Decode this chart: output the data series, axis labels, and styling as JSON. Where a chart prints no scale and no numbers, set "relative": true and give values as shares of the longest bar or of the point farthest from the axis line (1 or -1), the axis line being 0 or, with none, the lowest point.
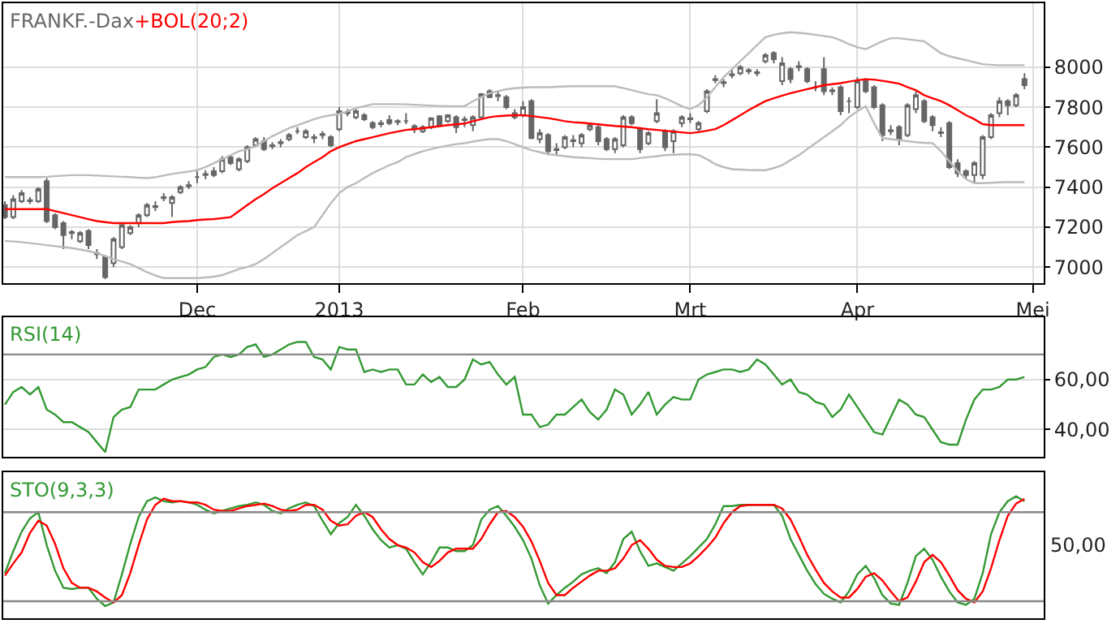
{
  "chart_data": [
    {
      "type": "candlestick",
      "title": "FRANKF.-Dax",
      "color": "#666666",
      "categories": [
        null,
        null,
        null,
        null,
        null,
        null,
        null,
        null,
        null,
        null,
        null,
        null,
        null,
        null,
        null,
        null,
        null,
        null,
        null,
        null,
        null,
        null,
        null,
        "Dec",
        null,
        null,
        null,
        null,
        null,
        null,
        null,
        null,
        null,
        null,
        null,
        null,
        null,
        null,
        null,
        null,
        "2013",
        null,
        null,
        null,
        null,
        null,
        null,
        null,
        null,
        null,
        null,
        null,
        null,
        null,
        null,
        null,
        null,
        null,
        null,
        null,
        null,
        null,
        "Feb",
        null,
        null,
        null,
        null,
        null,
        null,
        null,
        null,
        null,
        null,
        null,
        null,
        null,
        null,
        null,
        null,
        null,
        null,
        null,
        "Mrt",
        null,
        null,
        null,
        null,
        null,
        null,
        null,
        null,
        null,
        null,
        null,
        null,
        null,
        null,
        null,
        null,
        null,
        null,
        null,
        "Apr",
        null,
        null,
        null,
        null,
        null,
        null,
        null,
        null,
        null,
        null,
        null,
        null,
        null,
        null,
        null,
        null,
        null,
        null,
        null,
        null,
        "Mei"
      ],
      "ohlc": [
        [
          7310,
          7330,
          7240,
          7250
        ],
        [
          7250,
          7360,
          7240,
          7340
        ],
        [
          7330,
          7385,
          7320,
          7370
        ],
        [
          7335,
          7350,
          7315,
          7330
        ],
        [
          7330,
          7400,
          7320,
          7390
        ],
        [
          7430,
          7445,
          7220,
          7230
        ],
        [
          7260,
          7270,
          7190,
          7200
        ],
        [
          7220,
          7230,
          7090,
          7160
        ],
        [
          7170,
          7185,
          7140,
          7175
        ],
        [
          7130,
          7180,
          7120,
          7170
        ],
        [
          7180,
          7190,
          7090,
          7110
        ],
        [
          7070,
          7090,
          7040,
          7065
        ],
        [
          7050,
          7060,
          6940,
          6950
        ],
        [
          7020,
          7150,
          7000,
          7140
        ],
        [
          7100,
          7220,
          7090,
          7210
        ],
        [
          7170,
          7210,
          7160,
          7200
        ],
        [
          7220,
          7270,
          7200,
          7260
        ],
        [
          7260,
          7320,
          7250,
          7310
        ],
        [
          7300,
          7330,
          7280,
          7305
        ],
        [
          7345,
          7370,
          7330,
          7350
        ],
        [
          7320,
          7360,
          7250,
          7350
        ],
        [
          7375,
          7410,
          7365,
          7400
        ],
        [
          7405,
          7430,
          7390,
          7410
        ],
        [
          7450,
          7480,
          7420,
          7450
        ],
        [
          7460,
          7485,
          7440,
          7465
        ],
        [
          7480,
          7500,
          7450,
          7460
        ],
        [
          7480,
          7555,
          7470,
          7540
        ],
        [
          7550,
          7560,
          7510,
          7520
        ],
        [
          7490,
          7550,
          7480,
          7540
        ],
        [
          7530,
          7610,
          7520,
          7600
        ],
        [
          7610,
          7650,
          7600,
          7640
        ],
        [
          7630,
          7650,
          7580,
          7590
        ],
        [
          7605,
          7625,
          7590,
          7610
        ],
        [
          7620,
          7640,
          7600,
          7625
        ],
        [
          7640,
          7670,
          7630,
          7660
        ],
        [
          7680,
          7700,
          7665,
          7680
        ],
        [
          7650,
          7690,
          7640,
          7680
        ],
        [
          7645,
          7665,
          7620,
          7650
        ],
        [
          7660,
          7680,
          7640,
          7665
        ],
        [
          7650,
          7660,
          7600,
          7610
        ],
        [
          7690,
          7800,
          7680,
          7780
        ],
        [
          7770,
          7790,
          7755,
          7775
        ],
        [
          7750,
          7790,
          7740,
          7780
        ],
        [
          7760,
          7770,
          7730,
          7740
        ],
        [
          7720,
          7730,
          7690,
          7700
        ],
        [
          7715,
          7735,
          7700,
          7720
        ],
        [
          7735,
          7760,
          7710,
          7720
        ],
        [
          7725,
          7740,
          7710,
          7730
        ],
        [
          7730,
          7770,
          7715,
          7730
        ],
        [
          7705,
          7715,
          7670,
          7690
        ],
        [
          7680,
          7710,
          7670,
          7700
        ],
        [
          7700,
          7750,
          7690,
          7745
        ],
        [
          7755,
          7760,
          7700,
          7710
        ],
        [
          7730,
          7765,
          7720,
          7760
        ],
        [
          7750,
          7760,
          7670,
          7700
        ],
        [
          7735,
          7755,
          7700,
          7740
        ],
        [
          7710,
          7760,
          7680,
          7750
        ],
        [
          7750,
          7870,
          7745,
          7865
        ],
        [
          7880,
          7890,
          7845,
          7850
        ],
        [
          7855,
          7880,
          7830,
          7860
        ],
        [
          7850,
          7860,
          7790,
          7800
        ],
        [
          7770,
          7790,
          7740,
          7750
        ],
        [
          7760,
          7830,
          7750,
          7800
        ],
        [
          7830,
          7840,
          7640,
          7645
        ],
        [
          7640,
          7690,
          7620,
          7670
        ],
        [
          7660,
          7670,
          7560,
          7580
        ],
        [
          7585,
          7620,
          7560,
          7590
        ],
        [
          7600,
          7660,
          7590,
          7650
        ],
        [
          7630,
          7660,
          7600,
          7635
        ],
        [
          7620,
          7670,
          7600,
          7660
        ],
        [
          7690,
          7720,
          7680,
          7710
        ],
        [
          7700,
          7710,
          7610,
          7630
        ],
        [
          7640,
          7650,
          7580,
          7590
        ],
        [
          7590,
          7650,
          7570,
          7640
        ],
        [
          7610,
          7760,
          7600,
          7750
        ],
        [
          7750,
          7760,
          7710,
          7720
        ],
        [
          7690,
          7700,
          7570,
          7590
        ],
        [
          7620,
          7680,
          7610,
          7670
        ],
        [
          7730,
          7840,
          7720,
          7770
        ],
        [
          7680,
          7690,
          7580,
          7600
        ],
        [
          7630,
          7690,
          7570,
          7680
        ],
        [
          7720,
          7760,
          7700,
          7750
        ],
        [
          7740,
          7770,
          7720,
          7745
        ],
        [
          7690,
          7730,
          7680,
          7720
        ],
        [
          7780,
          7890,
          7770,
          7880
        ],
        [
          7935,
          7960,
          7920,
          7940
        ],
        [
          7920,
          7940,
          7900,
          7925
        ],
        [
          7960,
          7990,
          7945,
          7965
        ],
        [
          7970,
          8010,
          7960,
          8000
        ],
        [
          7980,
          7995,
          7965,
          7985
        ],
        [
          7970,
          7990,
          7955,
          7975
        ],
        [
          8030,
          8070,
          8020,
          8060
        ],
        [
          8070,
          8080,
          8020,
          8040
        ],
        [
          7930,
          8050,
          7910,
          8020
        ],
        [
          7990,
          8000,
          7920,
          7940
        ],
        [
          8000,
          8030,
          7980,
          8005
        ],
        [
          7990,
          8000,
          7920,
          7930
        ],
        [
          7900,
          7930,
          7880,
          7900
        ],
        [
          7990,
          8050,
          7860,
          7880
        ],
        [
          7880,
          7900,
          7860,
          7885
        ],
        [
          7900,
          7910,
          7760,
          7780
        ],
        [
          7830,
          7850,
          7770,
          7830
        ],
        [
          7800,
          7950,
          7790,
          7930
        ],
        [
          7930,
          7945,
          7870,
          7880
        ],
        [
          7900,
          7910,
          7790,
          7800
        ],
        [
          7810,
          7820,
          7630,
          7660
        ],
        [
          7680,
          7710,
          7660,
          7685
        ],
        [
          7700,
          7710,
          7610,
          7640
        ],
        [
          7660,
          7820,
          7650,
          7810
        ],
        [
          7790,
          7880,
          7770,
          7860
        ],
        [
          7830,
          7840,
          7720,
          7730
        ],
        [
          7750,
          7760,
          7680,
          7710
        ],
        [
          7670,
          7700,
          7650,
          7675
        ],
        [
          7720,
          7730,
          7490,
          7500
        ],
        [
          7520,
          7540,
          7450,
          7470
        ],
        [
          7480,
          7490,
          7440,
          7460
        ],
        [
          7460,
          7530,
          7420,
          7520
        ],
        [
          7460,
          7660,
          7440,
          7650
        ],
        [
          7650,
          7770,
          7640,
          7760
        ],
        [
          7770,
          7850,
          7750,
          7830
        ],
        [
          7830,
          7840,
          7760,
          7810
        ],
        [
          7810,
          7870,
          7800,
          7860
        ],
        [
          7940,
          7970,
          7890,
          7910
        ],
        null
      ],
      "series": [
        {
          "type": "line",
          "color": "#bbbbbb",
          "values": [
            7450,
            7450,
            7450,
            7450,
            7450,
            7452,
            7455,
            7458,
            7460,
            7460,
            7460,
            7458,
            7456,
            7454,
            7452,
            7450,
            7447,
            7445,
            7450,
            7458,
            7466,
            7472,
            7478,
            7485,
            7500,
            7520,
            7540,
            7560,
            7580,
            7590,
            7605,
            7630,
            7655,
            7675,
            7695,
            7710,
            7725,
            7740,
            7752,
            7760,
            7766,
            7780,
            7795,
            7805,
            7815,
            7815,
            7815,
            7815,
            7814,
            7812,
            7810,
            7808,
            7806,
            7805,
            7805,
            7805,
            7830,
            7850,
            7870,
            7880,
            7890,
            7895,
            7898,
            7900,
            7900,
            7900,
            7902,
            7904,
            7905,
            7905,
            7905,
            7905,
            7905,
            7905,
            7895,
            7885,
            7875,
            7865,
            7860,
            7845,
            7825,
            7805,
            7790,
            7810,
            7850,
            7900,
            7950,
            7990,
            8030,
            8070,
            8110,
            8150,
            8162,
            8170,
            8175,
            8172,
            8168,
            8162,
            8156,
            8150,
            8135,
            8115,
            8100,
            8090,
            8110,
            8130,
            8145,
            8145,
            8140,
            8135,
            8130,
            8100,
            8070,
            8055,
            8045,
            8035,
            8025,
            8015,
            8012,
            8010,
            8010,
            8010,
            8010,
            null
          ]
        },
        {
          "type": "line",
          "color": "#bbbbbb",
          "values": [
            7130,
            7128,
            7125,
            7120,
            7115,
            7110,
            7105,
            7100,
            7095,
            7088,
            7080,
            7070,
            7055,
            7040,
            7028,
            7015,
            6995,
            6975,
            6958,
            6945,
            6945,
            6945,
            6945,
            6945,
            6948,
            6952,
            6960,
            6975,
            6990,
            7000,
            7015,
            7040,
            7070,
            7100,
            7130,
            7160,
            7180,
            7200,
            7260,
            7320,
            7370,
            7400,
            7420,
            7445,
            7470,
            7490,
            7510,
            7525,
            7550,
            7565,
            7580,
            7590,
            7600,
            7608,
            7615,
            7620,
            7628,
            7635,
            7640,
            7640,
            7630,
            7615,
            7600,
            7585,
            7575,
            7565,
            7560,
            7555,
            7550,
            7548,
            7545,
            7542,
            7540,
            7540,
            7540,
            7540,
            7545,
            7550,
            7555,
            7560,
            7562,
            7564,
            7565,
            7560,
            7540,
            7515,
            7500,
            7490,
            7488,
            7486,
            7485,
            7485,
            7495,
            7510,
            7535,
            7560,
            7590,
            7620,
            7650,
            7680,
            7710,
            7750,
            7780,
            7805,
            7720,
            7645,
            7640,
            7635,
            7630,
            7625,
            7622,
            7620,
            7580,
            7530,
            7480,
            7440,
            7420,
            7420,
            7422,
            7424,
            7425,
            7425,
            7425,
            null
          ]
        },
        {
          "type": "line",
          "name": "+BOL(20;2)",
          "color": "#ff0000",
          "values": [
            7290,
            7290,
            7290,
            7290,
            7290,
            7290,
            7280,
            7270,
            7260,
            7250,
            7240,
            7230,
            7225,
            7220,
            7220,
            7220,
            7220,
            7220,
            7220,
            7220,
            7225,
            7228,
            7230,
            7235,
            7238,
            7240,
            7245,
            7250,
            7280,
            7310,
            7340,
            7365,
            7395,
            7420,
            7445,
            7470,
            7500,
            7525,
            7550,
            7580,
            7600,
            7615,
            7630,
            7640,
            7650,
            7660,
            7670,
            7678,
            7686,
            7690,
            7695,
            7700,
            7705,
            7710,
            7714,
            7718,
            7730,
            7740,
            7750,
            7755,
            7758,
            7760,
            7760,
            7755,
            7750,
            7745,
            7738,
            7730,
            7725,
            7722,
            7718,
            7714,
            7710,
            7706,
            7703,
            7700,
            7695,
            7690,
            7686,
            7682,
            7678,
            7674,
            7670,
            7675,
            7682,
            7690,
            7710,
            7735,
            7760,
            7785,
            7808,
            7830,
            7845,
            7858,
            7870,
            7880,
            7890,
            7900,
            7910,
            7915,
            7920,
            7928,
            7935,
            7940,
            7938,
            7932,
            7925,
            7918,
            7900,
            7885,
            7860,
            7845,
            7830,
            7810,
            7785,
            7760,
            7740,
            7715,
            7710,
            7710,
            7710,
            7710,
            7710,
            null
          ]
        }
      ],
      "ylim": [
        6920,
        8320
      ],
      "yticks": [
        7000,
        7200,
        7400,
        7600,
        7800,
        8000
      ],
      "grid": true
    },
    {
      "type": "line",
      "title": "RSI(14)",
      "tick_labels": "y",
      "categories": [
        null,
        null,
        null,
        null,
        null,
        null,
        null,
        null,
        null,
        null,
        null,
        null,
        null,
        null,
        null,
        null,
        null,
        null,
        null,
        null,
        null,
        null,
        null,
        null,
        null,
        null,
        null,
        null,
        null,
        null,
        null,
        null,
        null,
        null,
        null,
        null,
        null,
        null,
        null,
        null,
        null,
        null,
        null,
        null,
        null,
        null,
        null,
        null,
        null,
        null,
        null,
        null,
        null,
        null,
        null,
        null,
        null,
        null,
        null,
        null,
        null,
        null,
        null,
        null,
        null,
        null,
        null,
        null,
        null,
        null,
        null,
        null,
        null,
        null,
        null,
        null,
        null,
        null,
        null,
        null,
        null,
        null,
        null,
        null,
        null,
        null,
        null,
        null,
        null,
        null,
        null,
        null,
        null,
        null,
        null,
        null,
        null,
        null,
        null,
        null,
        null,
        null,
        null,
        null,
        null,
        null,
        null,
        null,
        null,
        null,
        null,
        null,
        null,
        null,
        null,
        null,
        null,
        null,
        null,
        null,
        null,
        null,
        null,
        null
      ],
      "series": [
        {
          "color": "#339933",
          "values": [
            50,
            55,
            57,
            54,
            57,
            48,
            46,
            43,
            43,
            41,
            39,
            35,
            31,
            45,
            48,
            49,
            56,
            56,
            56,
            58,
            60,
            61,
            62,
            64,
            65,
            69,
            70,
            69,
            70,
            73,
            74,
            69,
            70,
            72,
            74,
            75,
            75,
            69,
            68,
            64,
            73,
            72,
            72,
            63,
            64,
            63,
            64,
            64,
            58,
            58,
            62,
            59,
            61,
            57,
            57,
            60,
            68,
            66,
            67,
            62,
            58,
            61,
            46,
            46,
            41,
            42,
            46,
            46,
            49,
            52,
            47,
            44,
            48,
            56,
            54,
            46,
            50,
            55,
            46,
            50,
            53,
            52,
            52,
            60,
            62,
            63,
            64,
            64,
            63,
            64,
            68,
            66,
            62,
            58,
            60,
            55,
            54,
            51,
            50,
            45,
            48,
            54,
            49,
            44,
            39,
            38,
            45,
            52,
            50,
            46,
            45,
            40,
            35,
            34,
            34,
            44,
            52,
            56,
            56,
            57,
            60,
            60,
            61,
            null
          ]
        }
      ],
      "ylim": [
        29,
        85
      ],
      "yticks": [
        {
          "value": 40,
          "label": "40,00"
        },
        {
          "value": 60,
          "label": "60,00"
        }
      ],
      "ref_lines": [
        {
          "axis": "y",
          "value": 70,
          "color": "#888888"
        }
      ],
      "grid": true
    },
    {
      "type": "line",
      "title": "STO(9,3,3)",
      "tick_labels": "y",
      "categories": [
        null,
        null,
        null,
        null,
        null,
        null,
        null,
        null,
        null,
        null,
        null,
        null,
        null,
        null,
        null,
        null,
        null,
        null,
        null,
        null,
        null,
        null,
        null,
        null,
        null,
        null,
        null,
        null,
        null,
        null,
        null,
        null,
        null,
        null,
        null,
        null,
        null,
        null,
        null,
        null,
        null,
        null,
        null,
        null,
        null,
        null,
        null,
        null,
        null,
        null,
        null,
        null,
        null,
        null,
        null,
        null,
        null,
        null,
        null,
        null,
        null,
        null,
        null,
        null,
        null,
        null,
        null,
        null,
        null,
        null,
        null,
        null,
        null,
        null,
        null,
        null,
        null,
        null,
        null,
        null,
        null,
        null,
        null,
        null,
        null,
        null,
        null,
        null,
        null,
        null,
        null,
        null,
        null,
        null,
        null,
        null,
        null,
        null,
        null,
        null,
        null,
        null,
        null,
        null,
        null,
        null,
        null,
        null,
        null,
        null,
        null,
        null,
        null,
        null,
        null,
        null,
        null,
        null,
        null,
        null,
        null,
        null,
        null,
        null
      ],
      "series": [
        {
          "color": "#339933",
          "values": [
            0.37,
            0.55,
            0.71,
            0.82,
            0.87,
            0.6,
            0.39,
            0.25,
            0.24,
            0.25,
            0.25,
            0.16,
            0.1,
            0.13,
            0.36,
            0.61,
            0.83,
            0.96,
            0.99,
            0.96,
            0.95,
            0.96,
            0.95,
            0.93,
            0.89,
            0.86,
            0.88,
            0.9,
            0.92,
            0.93,
            0.95,
            0.93,
            0.88,
            0.86,
            0.9,
            0.93,
            0.95,
            0.92,
            0.8,
            0.69,
            0.78,
            0.83,
            0.93,
            0.84,
            0.73,
            0.64,
            0.58,
            0.6,
            0.57,
            0.46,
            0.36,
            0.46,
            0.58,
            0.58,
            0.55,
            0.55,
            0.6,
            0.81,
            0.89,
            0.92,
            0.84,
            0.75,
            0.64,
            0.49,
            0.27,
            0.12,
            0.19,
            0.25,
            0.3,
            0.36,
            0.39,
            0.41,
            0.37,
            0.46,
            0.65,
            0.71,
            0.55,
            0.43,
            0.45,
            0.42,
            0.39,
            0.45,
            0.51,
            0.58,
            0.65,
            0.77,
            0.92,
            0.92,
            0.93,
            0.93,
            0.93,
            0.93,
            0.93,
            0.84,
            0.65,
            0.52,
            0.39,
            0.28,
            0.2,
            0.16,
            0.13,
            0.22,
            0.36,
            0.43,
            0.33,
            0.19,
            0.12,
            0.11,
            0.29,
            0.51,
            0.57,
            0.48,
            0.34,
            0.22,
            0.13,
            0.11,
            0.16,
            0.37,
            0.69,
            0.87,
            0.96,
            1.0,
            0.96,
            null
          ]
        },
        {
          "color": "#ff0000",
          "values": [
            0.35,
            0.45,
            0.54,
            0.7,
            0.8,
            0.76,
            0.61,
            0.41,
            0.29,
            0.25,
            0.25,
            0.22,
            0.17,
            0.13,
            0.19,
            0.37,
            0.6,
            0.81,
            0.93,
            0.98,
            0.96,
            0.96,
            0.95,
            0.95,
            0.93,
            0.89,
            0.88,
            0.88,
            0.9,
            0.92,
            0.93,
            0.94,
            0.92,
            0.89,
            0.88,
            0.89,
            0.93,
            0.93,
            0.89,
            0.8,
            0.76,
            0.77,
            0.84,
            0.87,
            0.83,
            0.73,
            0.65,
            0.6,
            0.58,
            0.54,
            0.46,
            0.42,
            0.47,
            0.54,
            0.57,
            0.57,
            0.57,
            0.65,
            0.77,
            0.87,
            0.88,
            0.83,
            0.75,
            0.63,
            0.47,
            0.29,
            0.19,
            0.19,
            0.25,
            0.3,
            0.35,
            0.39,
            0.39,
            0.41,
            0.49,
            0.6,
            0.64,
            0.57,
            0.48,
            0.43,
            0.42,
            0.42,
            0.45,
            0.51,
            0.58,
            0.66,
            0.78,
            0.87,
            0.92,
            0.93,
            0.93,
            0.93,
            0.93,
            0.9,
            0.81,
            0.67,
            0.52,
            0.4,
            0.29,
            0.22,
            0.17,
            0.17,
            0.24,
            0.34,
            0.37,
            0.31,
            0.22,
            0.14,
            0.17,
            0.3,
            0.46,
            0.52,
            0.46,
            0.35,
            0.23,
            0.16,
            0.13,
            0.22,
            0.41,
            0.64,
            0.84,
            0.94,
            0.98,
            null
          ]
        }
      ],
      "relative": true,
      "annotations": [
        "50,00"
      ],
      "ref_lines": [
        {
          "axis": "y",
          "value": 0.87,
          "color": "#888888"
        },
        {
          "axis": "y",
          "value": 0.14,
          "color": "#888888"
        }
      ],
      "grid": "x"
    }
  ]
}
